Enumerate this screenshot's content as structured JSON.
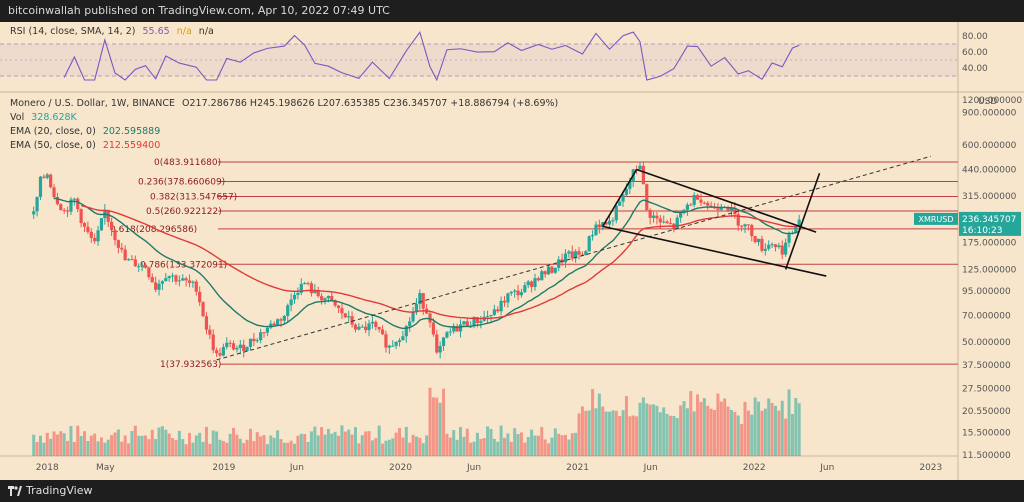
{
  "header": {
    "text": "bitcoinwallah published on TradingView.com, Apr 10, 2022 07:49 UTC"
  },
  "footer": {
    "brand": "TradingView"
  },
  "rsi_legend": {
    "label": "RSI (14, close, SMA, 14, 2)",
    "value": "55.65",
    "sma_value": "n/a",
    "extra": "n/a"
  },
  "main_legend": {
    "symbol_line": "Monero / U.S. Dollar, 1W, BINANCE",
    "ohlc": "O217.286786 H245.198626 L207.635385 C236.345707 +18.886794 (+8.69%)",
    "vol_label": "Vol",
    "vol_value": "328.628K",
    "ema20_label": "EMA (20, close, 0)",
    "ema20_value": "202.595889",
    "ema50_label": "EMA (50, close, 0)",
    "ema50_value": "212.559400"
  },
  "price_tag": {
    "symbol": "XMRUSD",
    "price": "236.345707",
    "countdown": "16:10:23"
  },
  "axis_currency": "USD",
  "colors": {
    "up": "#26a69a",
    "down": "#ef5350",
    "ema20": "#1f7a6b",
    "ema50": "#e03a3a",
    "fib": "#c04040",
    "rsi": "#7e57c2",
    "bg": "#f8e6cc"
  },
  "chart_data": {
    "type": "candlestick",
    "title": "Monero / U.S. Dollar, 1W, BINANCE",
    "x_ticks": [
      "2018",
      "May",
      "2019",
      "Jun",
      "2020",
      "Jun",
      "2021",
      "Jun",
      "2022",
      "Jun",
      "2023"
    ],
    "price_axis_ticks": [
      "1200.000000",
      "900.000000",
      "600.000000",
      "440.000000",
      "315.000000",
      "240.000000",
      "175.000000",
      "125.000000",
      "95.000000",
      "70.000000",
      "50.000000",
      "37.500000",
      "27.500000",
      "20.550000",
      "15.500000",
      "11.500000"
    ],
    "rsi_axis_ticks": [
      "80.00",
      "60.00",
      "40.00"
    ],
    "rsi_bands": [
      70,
      30
    ],
    "fib_levels": [
      {
        "label": "0(483.911680)",
        "value": 483.91168
      },
      {
        "label": "0.236(378.660609)",
        "value": 378.660609
      },
      {
        "label": "0.382(313.547657)",
        "value": 313.547657
      },
      {
        "label": "0.5(260.922122)",
        "value": 260.922122
      },
      {
        "label": "0.618(208.296586)",
        "value": 208.296586
      },
      {
        "label": "0.786(133.372091)",
        "value": 133.372091
      },
      {
        "label": "1(37.932563)",
        "value": 37.932563
      }
    ],
    "price_path": [
      [
        "2017-12-04",
        250
      ],
      [
        "2017-12-18",
        380
      ],
      [
        "2018-01-01",
        420
      ],
      [
        "2018-01-15",
        320
      ],
      [
        "2018-02-05",
        260
      ],
      [
        "2018-02-26",
        300
      ],
      [
        "2018-03-19",
        210
      ],
      [
        "2018-04-09",
        170
      ],
      [
        "2018-04-30",
        260
      ],
      [
        "2018-05-21",
        190
      ],
      [
        "2018-06-11",
        140
      ],
      [
        "2018-07-02",
        135
      ],
      [
        "2018-07-23",
        130
      ],
      [
        "2018-08-13",
        100
      ],
      [
        "2018-09-03",
        118
      ],
      [
        "2018-10-01",
        110
      ],
      [
        "2018-11-05",
        100
      ],
      [
        "2018-11-26",
        60
      ],
      [
        "2018-12-17",
        42
      ],
      [
        "2019-01-07",
        48
      ],
      [
        "2019-02-04",
        46
      ],
      [
        "2019-03-04",
        52
      ],
      [
        "2019-04-01",
        60
      ],
      [
        "2019-05-06",
        70
      ],
      [
        "2019-05-27",
        95
      ],
      [
        "2019-06-17",
        105
      ],
      [
        "2019-07-08",
        92
      ],
      [
        "2019-08-05",
        85
      ],
      [
        "2019-09-02",
        72
      ],
      [
        "2019-10-07",
        58
      ],
      [
        "2019-11-04",
        62
      ],
      [
        "2019-12-09",
        47
      ],
      [
        "2020-01-13",
        60
      ],
      [
        "2020-02-10",
        88
      ],
      [
        "2020-03-02",
        68
      ],
      [
        "2020-03-16",
        42
      ],
      [
        "2020-04-06",
        55
      ],
      [
        "2020-05-04",
        62
      ],
      [
        "2020-06-08",
        66
      ],
      [
        "2020-07-13",
        72
      ],
      [
        "2020-08-10",
        90
      ],
      [
        "2020-09-07",
        95
      ],
      [
        "2020-10-12",
        115
      ],
      [
        "2020-11-09",
        125
      ],
      [
        "2020-12-07",
        148
      ],
      [
        "2021-01-11",
        150
      ],
      [
        "2021-02-08",
        220
      ],
      [
        "2021-03-08",
        225
      ],
      [
        "2021-04-05",
        310
      ],
      [
        "2021-04-26",
        420
      ],
      [
        "2021-05-10",
        480
      ],
      [
        "2021-05-24",
        260
      ],
      [
        "2021-06-21",
        225
      ],
      [
        "2021-07-19",
        215
      ],
      [
        "2021-08-16",
        280
      ],
      [
        "2021-09-06",
        320
      ],
      [
        "2021-10-04",
        270
      ],
      [
        "2021-11-01",
        290
      ],
      [
        "2021-11-29",
        230
      ],
      [
        "2021-12-20",
        210
      ],
      [
        "2022-01-17",
        165
      ],
      [
        "2022-02-07",
        175
      ],
      [
        "2022-02-28",
        160
      ],
      [
        "2022-03-21",
        200
      ],
      [
        "2022-04-04",
        236
      ]
    ],
    "volume_range": [
      11.5,
      37.5
    ]
  }
}
